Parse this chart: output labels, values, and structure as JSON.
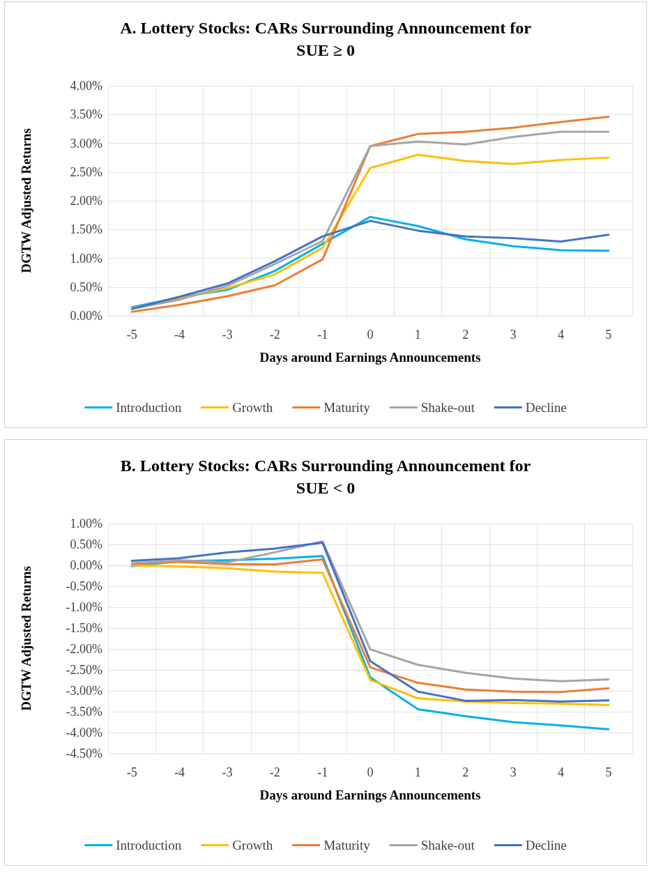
{
  "chart_data": [
    {
      "type": "line",
      "title": "A. Lottery Stocks: CARs Surrounding Announcement for\nSUE ≥ 0",
      "xlabel": "Days around Earnings Announcements",
      "ylabel": "DGTW Adjusted Returns",
      "categories": [
        "-5",
        "-4",
        "-3",
        "-2",
        "-1",
        "0",
        "1",
        "2",
        "3",
        "4",
        "5"
      ],
      "ylim": [
        0,
        4
      ],
      "yticks": [
        {
          "value": 0,
          "label": "0.00%"
        },
        {
          "value": 0.5,
          "label": "0.50%"
        },
        {
          "value": 1,
          "label": "1.00%"
        },
        {
          "value": 1.5,
          "label": "1.50%"
        },
        {
          "value": 2,
          "label": "2.00%"
        },
        {
          "value": 2.5,
          "label": "2.50%"
        },
        {
          "value": 3,
          "label": "3.00%"
        },
        {
          "value": 3.5,
          "label": "3.50%"
        },
        {
          "value": 4,
          "label": "4.00%"
        }
      ],
      "grid": true,
      "legend": "bottom",
      "marker": "none",
      "line_style": "solid",
      "series": [
        {
          "name": "Introduction",
          "color": "#00b0f0",
          "values": [
            0.15,
            0.32,
            0.45,
            0.78,
            1.25,
            1.72,
            1.56,
            1.33,
            1.21,
            1.14,
            1.13
          ]
        },
        {
          "name": "Growth",
          "color": "#ffc000",
          "values": [
            0.13,
            0.3,
            0.48,
            0.72,
            1.18,
            2.57,
            2.8,
            2.69,
            2.64,
            2.71,
            2.75
          ]
        },
        {
          "name": "Maturity",
          "color": "#ed7d31",
          "values": [
            0.07,
            0.19,
            0.34,
            0.53,
            0.98,
            2.95,
            3.16,
            3.2,
            3.27,
            3.37,
            3.46
          ]
        },
        {
          "name": "Shake-out",
          "color": "#a5a5a5",
          "values": [
            0.12,
            0.28,
            0.52,
            0.9,
            1.3,
            2.95,
            3.03,
            2.98,
            3.11,
            3.2,
            3.2
          ]
        },
        {
          "name": "Decline",
          "color": "#4472c4",
          "values": [
            0.12,
            0.33,
            0.56,
            0.95,
            1.38,
            1.65,
            1.48,
            1.38,
            1.35,
            1.29,
            1.41
          ]
        }
      ]
    },
    {
      "type": "line",
      "title": "B. Lottery Stocks: CARs Surrounding Announcement for\nSUE < 0",
      "xlabel": "Days around Earnings Announcements",
      "ylabel": "DGTW Adjusted Returns",
      "categories": [
        "-5",
        "-4",
        "-3",
        "-2",
        "-1",
        "0",
        "1",
        "2",
        "3",
        "4",
        "5"
      ],
      "ylim": [
        -4.5,
        1
      ],
      "yticks": [
        {
          "value": -4.5,
          "label": "-4.50%"
        },
        {
          "value": -4,
          "label": "-4.00%"
        },
        {
          "value": -3.5,
          "label": "-3.50%"
        },
        {
          "value": -3,
          "label": "-3.00%"
        },
        {
          "value": -2.5,
          "label": "-2.50%"
        },
        {
          "value": -2,
          "label": "-2.00%"
        },
        {
          "value": -1.5,
          "label": "-1.50%"
        },
        {
          "value": -1,
          "label": "-1.00%"
        },
        {
          "value": -0.5,
          "label": "-0.50%"
        },
        {
          "value": 0,
          "label": "0.00%"
        },
        {
          "value": 0.5,
          "label": "0.50%"
        },
        {
          "value": 1,
          "label": "1.00%"
        }
      ],
      "grid": true,
      "legend": "bottom",
      "marker": "none",
      "line_style": "solid",
      "series": [
        {
          "name": "Introduction",
          "color": "#00b0f0",
          "values": [
            -0.02,
            0.1,
            0.12,
            0.16,
            0.22,
            -2.68,
            -3.44,
            -3.61,
            -3.75,
            -3.83,
            -3.92
          ]
        },
        {
          "name": "Growth",
          "color": "#ffc000",
          "values": [
            0,
            -0.03,
            -0.07,
            -0.15,
            -0.18,
            -2.74,
            -3.18,
            -3.26,
            -3.29,
            -3.31,
            -3.34
          ]
        },
        {
          "name": "Maturity",
          "color": "#ed7d31",
          "values": [
            0.03,
            0.08,
            0.03,
            0.02,
            0.14,
            -2.44,
            -2.81,
            -2.97,
            -3.02,
            -3.03,
            -2.94
          ]
        },
        {
          "name": "Shake-out",
          "color": "#a5a5a5",
          "values": [
            0.05,
            0.12,
            0.07,
            0.31,
            0.57,
            -2.01,
            -2.38,
            -2.57,
            -2.71,
            -2.77,
            -2.73
          ]
        },
        {
          "name": "Decline",
          "color": "#4472c4",
          "values": [
            0.11,
            0.17,
            0.31,
            0.4,
            0.54,
            -2.29,
            -3.02,
            -3.24,
            -3.22,
            -3.26,
            -3.23
          ]
        }
      ]
    }
  ]
}
